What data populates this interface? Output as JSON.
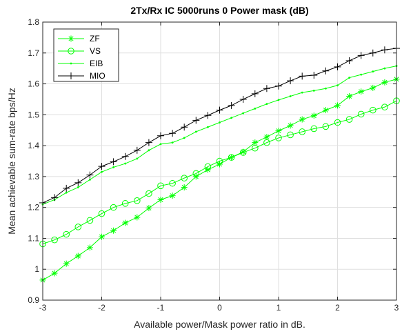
{
  "chart_data": {
    "type": "line",
    "title": "2Tx/Rx IC  5000runs   0   Power mask (dB)",
    "xlabel": "Available power/Mask power ratio in dB.",
    "ylabel": "Mean achievable sum-rate bps/Hz",
    "xlim": [
      -3,
      3
    ],
    "ylim": [
      0.9,
      1.8
    ],
    "xticks": [
      -3,
      -2,
      -1,
      0,
      1,
      2,
      3
    ],
    "yticks": [
      0.9,
      1,
      1.1,
      1.2,
      1.3,
      1.4,
      1.5,
      1.6,
      1.7,
      1.8
    ],
    "xtick_labels": [
      "-3",
      "-2",
      "-1",
      "0",
      "1",
      "2",
      "3"
    ],
    "ytick_labels": [
      "0.9",
      "1",
      "1.1",
      "1.2",
      "1.3",
      "1.4",
      "1.5",
      "1.6",
      "1.7",
      "1.8"
    ],
    "grid": true,
    "legend_position": "top-left",
    "x": [
      -3.0,
      -2.8,
      -2.6,
      -2.4,
      -2.2,
      -2.0,
      -1.8,
      -1.6,
      -1.4,
      -1.2,
      -1.0,
      -0.8,
      -0.6,
      -0.4,
      -0.2,
      0.0,
      0.2,
      0.4,
      0.6,
      0.8,
      1.0,
      1.2,
      1.4,
      1.6,
      1.8,
      2.0,
      2.2,
      2.4,
      2.6,
      2.8,
      3.0
    ],
    "series": [
      {
        "name": "ZF",
        "color": "#00ff00",
        "marker": "asterisk",
        "values": [
          0.965,
          0.987,
          1.018,
          1.043,
          1.07,
          1.105,
          1.125,
          1.15,
          1.168,
          1.198,
          1.225,
          1.238,
          1.265,
          1.3,
          1.322,
          1.34,
          1.362,
          1.38,
          1.41,
          1.428,
          1.448,
          1.465,
          1.485,
          1.497,
          1.515,
          1.53,
          1.56,
          1.575,
          1.587,
          1.605,
          1.615
        ]
      },
      {
        "name": "VS",
        "color": "#00ff00",
        "marker": "circle",
        "values": [
          1.082,
          1.095,
          1.113,
          1.137,
          1.158,
          1.18,
          1.2,
          1.213,
          1.222,
          1.245,
          1.27,
          1.278,
          1.295,
          1.31,
          1.332,
          1.35,
          1.362,
          1.378,
          1.392,
          1.41,
          1.425,
          1.435,
          1.445,
          1.455,
          1.462,
          1.475,
          1.485,
          1.502,
          1.515,
          1.525,
          1.545
        ]
      },
      {
        "name": "EIB",
        "color": "#00ff00",
        "marker": "dot",
        "values": [
          1.21,
          1.225,
          1.248,
          1.265,
          1.29,
          1.315,
          1.33,
          1.342,
          1.358,
          1.385,
          1.405,
          1.41,
          1.425,
          1.445,
          1.46,
          1.475,
          1.49,
          1.505,
          1.52,
          1.535,
          1.548,
          1.56,
          1.572,
          1.578,
          1.585,
          1.595,
          1.62,
          1.63,
          1.64,
          1.65,
          1.658
        ]
      },
      {
        "name": "MIO",
        "color": "#000000",
        "marker": "plus",
        "values": [
          1.215,
          1.232,
          1.262,
          1.28,
          1.305,
          1.333,
          1.348,
          1.365,
          1.385,
          1.41,
          1.432,
          1.44,
          1.46,
          1.482,
          1.498,
          1.515,
          1.53,
          1.55,
          1.568,
          1.585,
          1.593,
          1.61,
          1.625,
          1.628,
          1.642,
          1.655,
          1.675,
          1.692,
          1.7,
          1.71,
          1.715
        ]
      }
    ]
  }
}
